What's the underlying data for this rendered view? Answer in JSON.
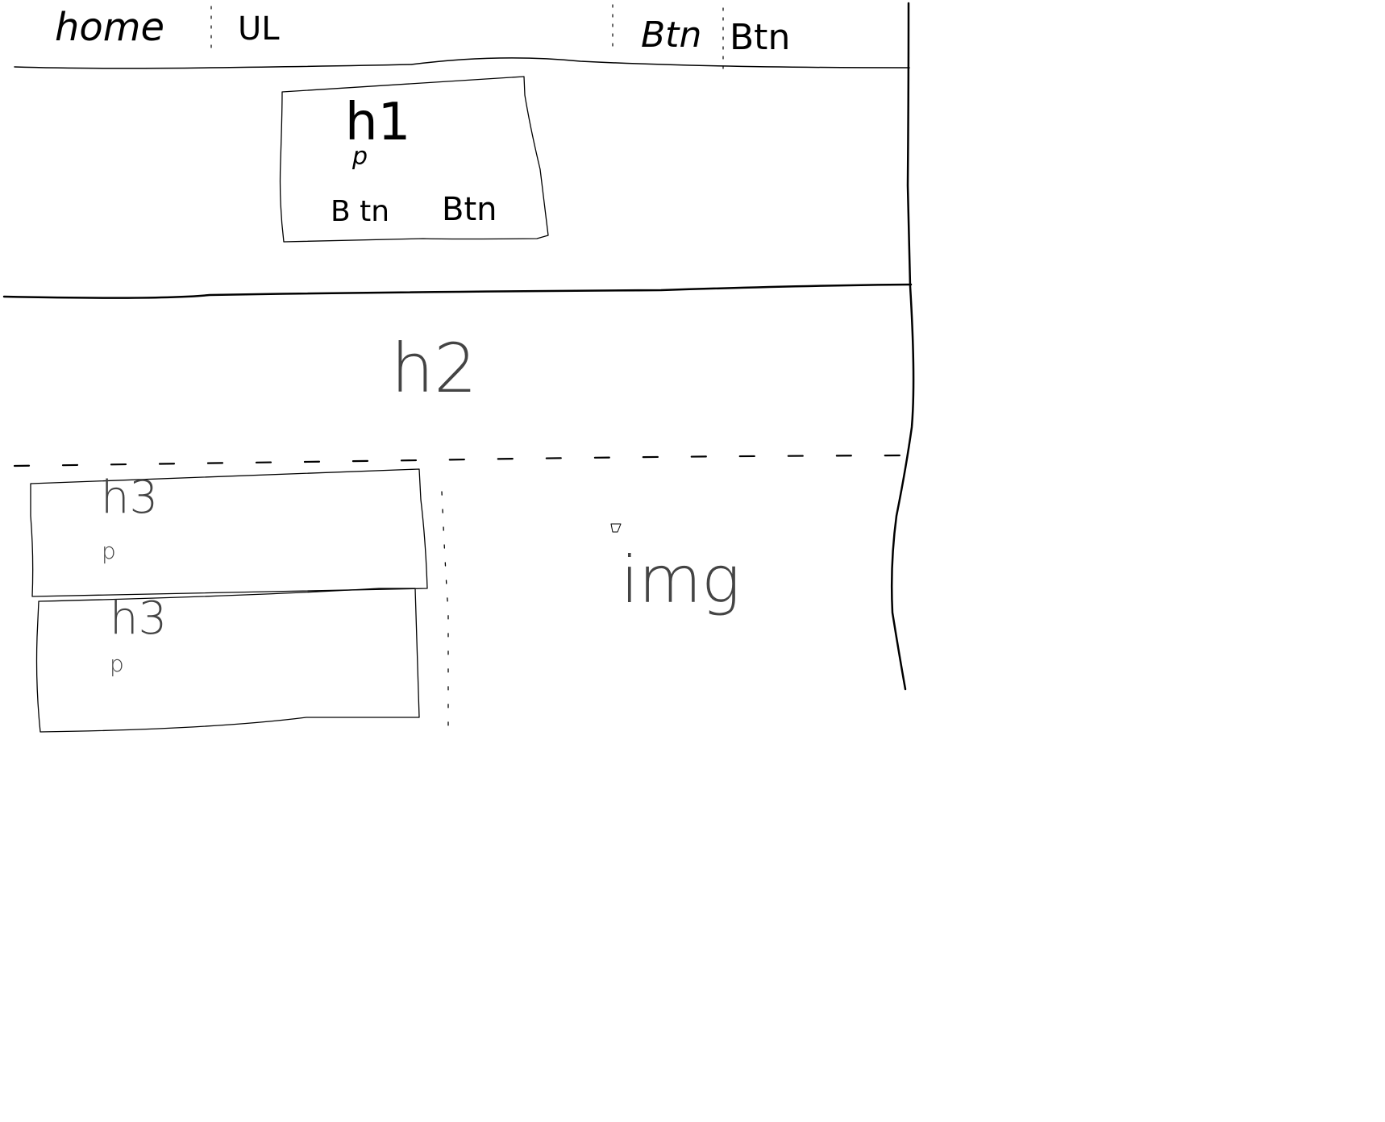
{
  "nav": {
    "home_label": "home",
    "list_label": "UL",
    "buttons": [
      "Btn",
      "Btn"
    ]
  },
  "hero": {
    "heading": "h1",
    "paragraph": "p",
    "buttons": [
      "B tn",
      "Btn"
    ]
  },
  "section": {
    "heading": "h2"
  },
  "cards": [
    {
      "heading": "h3",
      "paragraph": "p"
    },
    {
      "heading": "h3",
      "paragraph": "p"
    }
  ],
  "image_placeholder": {
    "label": "img"
  },
  "colors": {
    "ink": "#000000",
    "paper": "#ffffff"
  }
}
